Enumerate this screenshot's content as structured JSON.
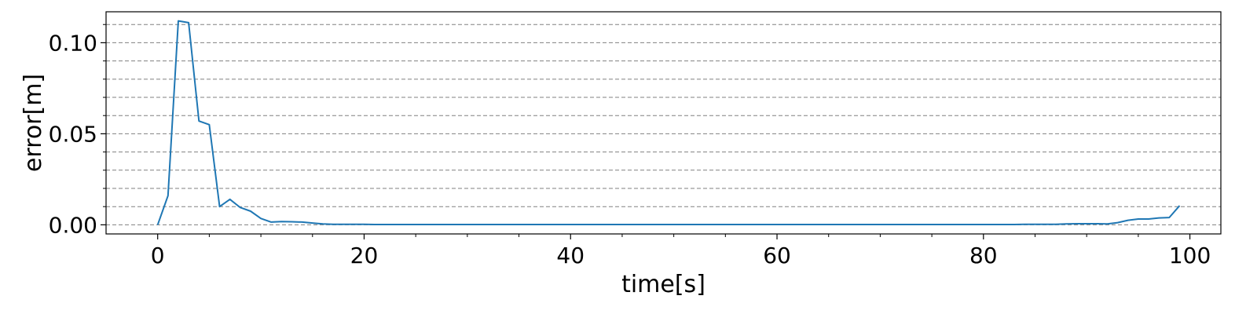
{
  "chart_data": {
    "type": "line",
    "title": "",
    "xlabel": "time[s]",
    "ylabel": "error[m]",
    "xlim": [
      -5,
      103
    ],
    "ylim": [
      -0.005,
      0.117
    ],
    "x_ticks": [
      0,
      20,
      40,
      60,
      80,
      100
    ],
    "x_tick_labels": [
      "0",
      "20",
      "40",
      "60",
      "80",
      "100"
    ],
    "x_minor_ticks": [
      5,
      10,
      15,
      25,
      30,
      35,
      45,
      50,
      55,
      65,
      70,
      75,
      85,
      90,
      95
    ],
    "y_ticks": [
      0.0,
      0.05,
      0.1
    ],
    "y_tick_labels": [
      "0.00",
      "0.05",
      "0.10"
    ],
    "y_minor_ticks": [
      0.01,
      0.02,
      0.03,
      0.04,
      0.06,
      0.07,
      0.08,
      0.09,
      0.11
    ],
    "y_gridlines": [
      0.0,
      0.01,
      0.02,
      0.03,
      0.04,
      0.05,
      0.06,
      0.07,
      0.08,
      0.09,
      0.1,
      0.11
    ],
    "grid": "horizontal dashed",
    "line_color": "#1f77b4",
    "grid_color": "#808080",
    "series": [
      {
        "x": [
          0,
          1,
          2,
          3,
          4,
          5,
          6,
          7,
          8,
          9,
          10,
          11,
          12,
          13,
          14,
          15,
          16,
          17,
          18,
          19,
          20,
          21,
          22,
          23,
          24,
          25,
          26,
          27,
          28,
          29,
          30,
          31,
          32,
          33,
          34,
          35,
          36,
          37,
          38,
          39,
          40,
          41,
          42,
          43,
          44,
          45,
          46,
          47,
          48,
          49,
          50,
          51,
          52,
          53,
          54,
          55,
          56,
          57,
          58,
          59,
          60,
          61,
          62,
          63,
          64,
          65,
          66,
          67,
          68,
          69,
          70,
          71,
          72,
          73,
          74,
          75,
          76,
          77,
          78,
          79,
          80,
          81,
          82,
          83,
          84,
          85,
          86,
          87,
          88,
          89,
          90,
          91,
          92,
          93,
          94,
          95,
          96,
          97,
          98,
          99
        ],
        "y": [
          0.0,
          0.016,
          0.112,
          0.111,
          0.057,
          0.055,
          0.01,
          0.014,
          0.0095,
          0.0075,
          0.0035,
          0.0015,
          0.0018,
          0.0017,
          0.0015,
          0.001,
          0.0005,
          0.0003,
          0.0003,
          0.0003,
          0.0003,
          0.0002,
          0.0002,
          0.0002,
          0.0002,
          0.0002,
          0.0002,
          0.0002,
          0.0002,
          0.0002,
          0.0002,
          0.0002,
          0.0002,
          0.0002,
          0.0002,
          0.0002,
          0.0002,
          0.0002,
          0.0002,
          0.0002,
          0.0002,
          0.0002,
          0.0002,
          0.0002,
          0.0002,
          0.0002,
          0.0002,
          0.0002,
          0.0002,
          0.0002,
          0.0002,
          0.0002,
          0.0002,
          0.0002,
          0.0002,
          0.0002,
          0.0002,
          0.0002,
          0.0002,
          0.0002,
          0.0002,
          0.0002,
          0.0002,
          0.0002,
          0.0002,
          0.0002,
          0.0002,
          0.0002,
          0.0002,
          0.0002,
          0.0002,
          0.0002,
          0.0002,
          0.0002,
          0.0002,
          0.0002,
          0.0002,
          0.0002,
          0.0002,
          0.0002,
          0.0002,
          0.0002,
          0.0002,
          0.0002,
          0.0003,
          0.0003,
          0.0003,
          0.0003,
          0.0005,
          0.0006,
          0.0006,
          0.0006,
          0.0005,
          0.0012,
          0.0025,
          0.0032,
          0.0032,
          0.0038,
          0.004,
          0.0105
        ]
      }
    ]
  }
}
